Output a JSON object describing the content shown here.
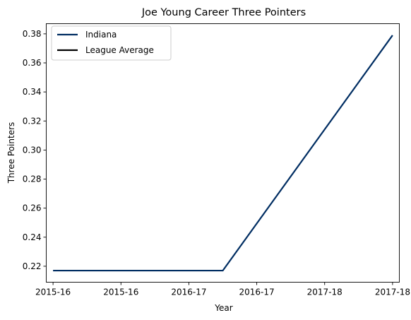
{
  "chart_data": {
    "type": "line",
    "title": "Joe Young  Career Three Pointers",
    "xlabel": "Year",
    "ylabel": "Three Pointers",
    "x_tick_labels": [
      "2015-16",
      "2015-16",
      "2016-17",
      "2016-17",
      "2017-18",
      "2017-18"
    ],
    "y_ticks": [
      0.22,
      0.24,
      0.26,
      0.28,
      0.3,
      0.32,
      0.34,
      0.36,
      0.38
    ],
    "y_tick_labels": [
      "0.22",
      "0.24",
      "0.26",
      "0.28",
      "0.30",
      "0.32",
      "0.34",
      "0.36",
      "0.38"
    ],
    "ylim": [
      0.209,
      0.387
    ],
    "xlim": [
      -0.1,
      5.1
    ],
    "grid": false,
    "legend_position": "upper-left",
    "series": [
      {
        "name": "Indiana",
        "color": "#002D62",
        "x": [
          0,
          1,
          2,
          2.5,
          5
        ],
        "y": [
          0.217,
          0.217,
          0.217,
          0.217,
          0.379
        ]
      },
      {
        "name": "League Average",
        "color": "#000000",
        "x": [],
        "y": []
      }
    ]
  }
}
